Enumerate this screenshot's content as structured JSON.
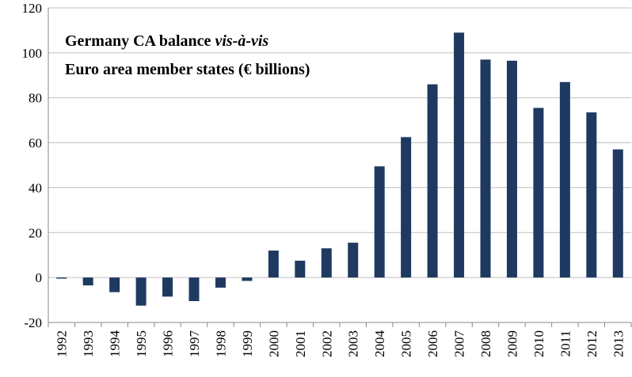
{
  "chart_data": {
    "type": "bar",
    "title": [
      "Germany CA balance",
      "vis-à-vis",
      "Euro area member states (€ billions)"
    ],
    "categories": [
      "1992",
      "1993",
      "1994",
      "1995",
      "1996",
      "1997",
      "1998",
      "1999",
      "2000",
      "2001",
      "2002",
      "2003",
      "2004",
      "2005",
      "2006",
      "2007",
      "2008",
      "2009",
      "2010",
      "2011",
      "2012",
      "2013"
    ],
    "values": [
      -0.5,
      -3.5,
      -6.5,
      -12.5,
      -8.5,
      -10.5,
      -4.5,
      -1.5,
      12,
      7.5,
      13,
      15.5,
      49.5,
      62.5,
      86,
      109,
      97,
      96.5,
      75.5,
      87,
      73.5,
      57
    ],
    "color": "#1f3a60",
    "ylim": [
      -20,
      120
    ],
    "yticks": [
      -20,
      0,
      20,
      40,
      60,
      80,
      100,
      120
    ],
    "grid": true
  }
}
